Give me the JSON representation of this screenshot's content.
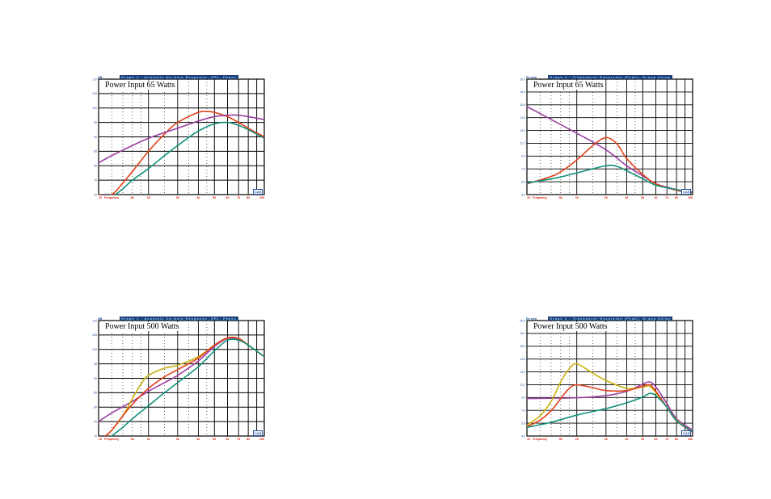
{
  "chart_data": [
    {
      "type": "line",
      "caption": "Graph 1 : Acoustic On Axis Response, SPL, Phase",
      "unit": "dB",
      "annotation": "Power Input 65 Watts",
      "logo": "CAS",
      "x_scale": "log",
      "xlim": [
        10,
        100
      ],
      "ylim": [
        70,
        110
      ],
      "yticks": [
        "70",
        "75",
        "80",
        "85",
        "90",
        "95",
        "100",
        "105",
        "110"
      ],
      "xtick_labels": [
        {
          "x": 10,
          "label": "10"
        },
        {
          "x": 12,
          "label": "Frequency"
        },
        {
          "x": 16,
          "label": "Hz"
        },
        {
          "x": 20,
          "label": "20"
        },
        {
          "x": 30,
          "label": "30"
        },
        {
          "x": 40,
          "label": "40"
        },
        {
          "x": 50,
          "label": "50"
        },
        {
          "x": 60,
          "label": "60"
        },
        {
          "x": 70,
          "label": "70"
        },
        {
          "x": 80,
          "label": "80"
        },
        {
          "x": 100,
          "label": "100"
        }
      ],
      "series": [
        {
          "color": "#e0401a",
          "x": [
            10,
            12,
            14,
            16,
            20,
            25,
            30,
            40,
            45,
            50,
            60,
            70,
            80,
            100
          ],
          "y": [
            70,
            70,
            74,
            78,
            85,
            91,
            95,
            98.5,
            98.8,
            98.5,
            97,
            95,
            93,
            90
          ]
        },
        {
          "color": "#9b3fa0",
          "x": [
            10,
            12,
            16,
            20,
            25,
            30,
            40,
            50,
            60,
            70,
            80,
            100
          ],
          "y": [
            81,
            83.5,
            87,
            89.5,
            91.5,
            93,
            95.5,
            97,
            97.5,
            97.5,
            97,
            96
          ]
        },
        {
          "color": "#11907a",
          "x": [
            12,
            14,
            16,
            20,
            25,
            30,
            40,
            50,
            60,
            70,
            80,
            100
          ],
          "y": [
            69,
            72,
            75,
            79,
            83.5,
            87,
            92,
            94.5,
            95,
            94,
            92.5,
            89.5
          ]
        }
      ]
    },
    {
      "type": "line",
      "caption": "Graph 2 : Transducer Excursion (Peak), Group Delay",
      "unit": "Ex mm",
      "annotation": "Power Input 65 Watts",
      "logo": "CAS",
      "x_scale": "log",
      "xlim": [
        10,
        100
      ],
      "ylim": [
        4,
        20
      ],
      "yticks": [
        "4.0",
        "5.8",
        "7.6",
        "9.4",
        "11.2",
        "13.0",
        "14.8",
        "16.6",
        "18.4",
        "20.0"
      ],
      "xtick_labels": [
        {
          "x": 10,
          "label": "10"
        },
        {
          "x": 12,
          "label": "Frequency"
        },
        {
          "x": 16,
          "label": "Hz"
        },
        {
          "x": 20,
          "label": "20"
        },
        {
          "x": 30,
          "label": "30"
        },
        {
          "x": 40,
          "label": "40"
        },
        {
          "x": 50,
          "label": "50"
        },
        {
          "x": 60,
          "label": "60"
        },
        {
          "x": 70,
          "label": "70"
        },
        {
          "x": 80,
          "label": "80"
        },
        {
          "x": 100,
          "label": "100"
        }
      ],
      "series": [
        {
          "color": "#9b3fa0",
          "x": [
            10,
            20,
            30,
            40,
            50,
            60,
            80,
            100
          ],
          "y": [
            16.2,
            12.5,
            10.2,
            8,
            6.6,
            5.5,
            4.7,
            4.3
          ]
        },
        {
          "color": "#e0401a",
          "x": [
            10,
            15,
            20,
            25,
            30,
            35,
            40,
            50,
            60,
            80,
            100
          ],
          "y": [
            5.5,
            6.8,
            8.8,
            10.8,
            11.9,
            11,
            9,
            6.8,
            5.5,
            4.6,
            4.2
          ]
        },
        {
          "color": "#11907a",
          "x": [
            10,
            15,
            20,
            30,
            35,
            40,
            50,
            60,
            80,
            100
          ],
          "y": [
            5.6,
            6.3,
            7,
            8,
            7.9,
            7.3,
            6.2,
            5.3,
            4.7,
            4.3
          ]
        }
      ]
    },
    {
      "type": "line",
      "caption": "Graph 1 : Acoustic On Axis Response, SPL, Phase",
      "unit": "dB",
      "annotation": "Power Input 500 Watts",
      "logo": "CAS",
      "x_scale": "log",
      "xlim": [
        10,
        100
      ],
      "ylim": [
        70,
        110
      ],
      "yticks": [
        "70",
        "75",
        "80",
        "85",
        "90",
        "95",
        "100",
        "105",
        "110"
      ],
      "xtick_labels": [
        {
          "x": 10,
          "label": "10"
        },
        {
          "x": 12,
          "label": "Frequency"
        },
        {
          "x": 16,
          "label": "Hz"
        },
        {
          "x": 20,
          "label": "20"
        },
        {
          "x": 30,
          "label": "30"
        },
        {
          "x": 40,
          "label": "40"
        },
        {
          "x": 50,
          "label": "50"
        },
        {
          "x": 60,
          "label": "60"
        },
        {
          "x": 70,
          "label": "70"
        },
        {
          "x": 80,
          "label": "80"
        },
        {
          "x": 100,
          "label": "100"
        }
      ],
      "series": [
        {
          "color": "#9b3fa0",
          "x": [
            10,
            12,
            16,
            20,
            25,
            30,
            40,
            50,
            60,
            70,
            80,
            100
          ],
          "y": [
            75,
            78,
            82,
            85.5,
            88.5,
            91,
            96,
            101,
            103.8,
            103.5,
            101.5,
            97.5
          ]
        },
        {
          "color": "#c9b10a",
          "x": [
            11,
            12,
            14,
            16,
            18,
            20,
            25,
            30,
            40,
            50,
            60,
            70,
            80,
            100
          ],
          "y": [
            70,
            72,
            77,
            83,
            88,
            91,
            93.5,
            94.5,
            97.5,
            101.5,
            104,
            103.8,
            101.5,
            97.5
          ]
        },
        {
          "color": "#e0401a",
          "x": [
            11,
            12,
            14,
            16,
            20,
            25,
            30,
            40,
            50,
            60,
            70,
            80,
            100
          ],
          "y": [
            70,
            72,
            77,
            81,
            86.5,
            90.5,
            93,
            97,
            101.5,
            104,
            103.8,
            101.5,
            97.5
          ]
        },
        {
          "color": "#11907a",
          "x": [
            12,
            14,
            16,
            20,
            25,
            30,
            40,
            50,
            60,
            70,
            80,
            100
          ],
          "y": [
            70,
            73,
            76,
            80.5,
            85,
            88.5,
            94,
            99.5,
            103.2,
            103.2,
            101.5,
            97.5
          ]
        }
      ]
    },
    {
      "type": "line",
      "caption": "Graph 2 : Transducer Excursion (Peak), Group Delay",
      "unit": "Ex mm",
      "annotation": "Power Input 500 Watts",
      "logo": "CAS",
      "x_scale": "log",
      "xlim": [
        10,
        100
      ],
      "ylim": [
        4,
        20
      ],
      "yticks": [
        "4,0",
        "5,8",
        "7,6",
        "9,4",
        "11,2",
        "13,0",
        "14,8",
        "16,6",
        "18,4",
        "20,0"
      ],
      "xtick_labels": [
        {
          "x": 10,
          "label": "10"
        },
        {
          "x": 12,
          "label": "Frequency"
        },
        {
          "x": 16,
          "label": "Hz"
        },
        {
          "x": 20,
          "label": "20"
        },
        {
          "x": 30,
          "label": "30"
        },
        {
          "x": 40,
          "label": "40"
        },
        {
          "x": 50,
          "label": "50"
        },
        {
          "x": 60,
          "label": "60"
        },
        {
          "x": 70,
          "label": "70"
        },
        {
          "x": 80,
          "label": "80"
        },
        {
          "x": 100,
          "label": "100"
        }
      ],
      "series": [
        {
          "color": "#9b3fa0",
          "x": [
            10,
            20,
            30,
            40,
            50,
            55,
            60,
            70,
            80,
            100
          ],
          "y": [
            9.2,
            9.3,
            9.6,
            10.2,
            11.2,
            11.5,
            10.8,
            8.5,
            6.4,
            4.8
          ]
        },
        {
          "color": "#c9b10a",
          "x": [
            10,
            12,
            14,
            16,
            18,
            20,
            25,
            30,
            40,
            50,
            55,
            60,
            70,
            80,
            100
          ],
          "y": [
            5.5,
            6.8,
            8.8,
            11.5,
            13.3,
            14,
            12.7,
            11.7,
            10.6,
            10.8,
            10.9,
            10,
            8,
            6.2,
            4.5
          ]
        },
        {
          "color": "#e0401a",
          "x": [
            10,
            12,
            14,
            16,
            18,
            20,
            25,
            30,
            40,
            50,
            55,
            60,
            70,
            80,
            100
          ],
          "y": [
            5.3,
            6.2,
            7.5,
            9.2,
            10.6,
            11.1,
            10.7,
            10.3,
            10.3,
            10.9,
            11.1,
            10.2,
            8,
            6.1,
            4.5
          ]
        },
        {
          "color": "#11907a",
          "x": [
            10,
            14,
            20,
            30,
            40,
            50,
            55,
            60,
            70,
            80,
            100
          ],
          "y": [
            5.2,
            5.9,
            6.9,
            7.8,
            8.6,
            9.4,
            9.9,
            9.6,
            8,
            6.1,
            4.6
          ]
        }
      ]
    }
  ]
}
